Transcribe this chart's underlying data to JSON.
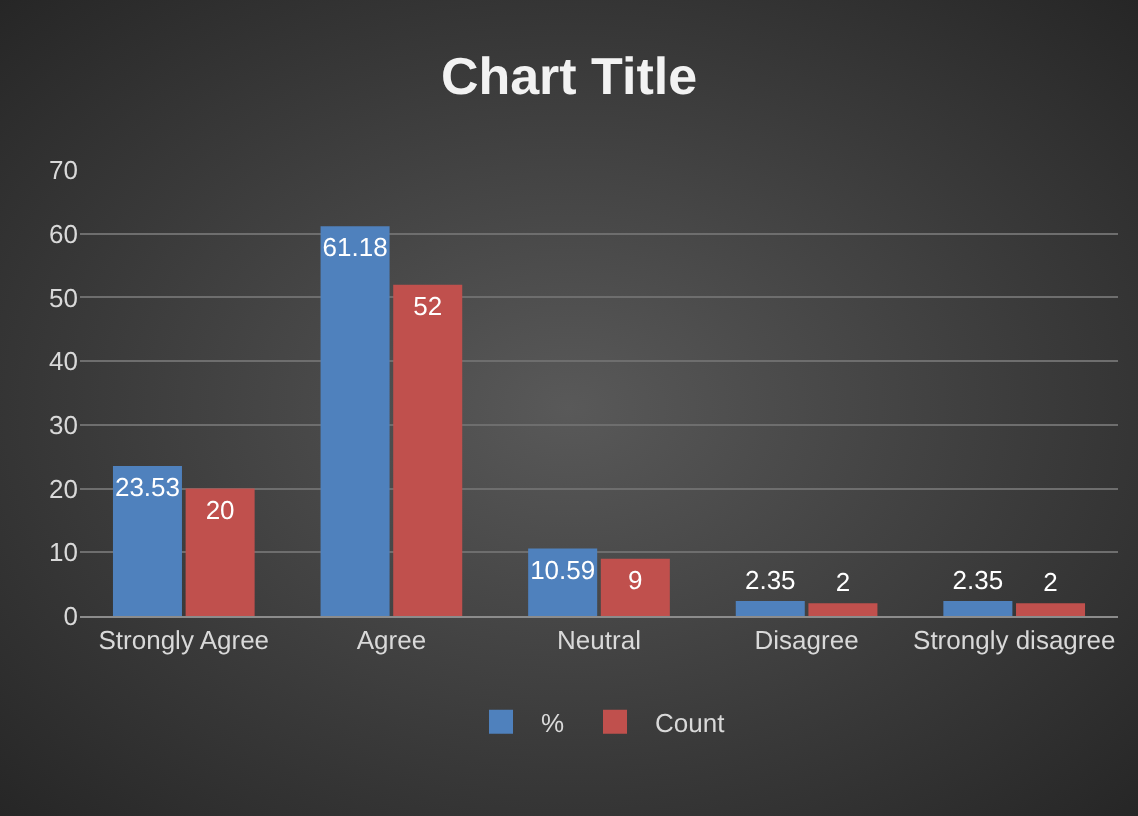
{
  "chart_data": {
    "type": "bar",
    "title": "Chart Title",
    "categories": [
      "Strongly Agree",
      "Agree",
      "Neutral",
      "Disagree",
      "Strongly disagree"
    ],
    "series": [
      {
        "name": "%",
        "color": "#4f81bd",
        "values": [
          23.53,
          61.18,
          10.59,
          2.35,
          2.35
        ]
      },
      {
        "name": "Count",
        "color": "#c0504d",
        "values": [
          20,
          52,
          9,
          2,
          2
        ]
      }
    ],
    "ylim": [
      0,
      70
    ],
    "yticks": [
      0,
      10,
      20,
      30,
      40,
      50,
      60,
      70
    ],
    "grid": "y",
    "legend": "bottom",
    "data_labels": true
  }
}
